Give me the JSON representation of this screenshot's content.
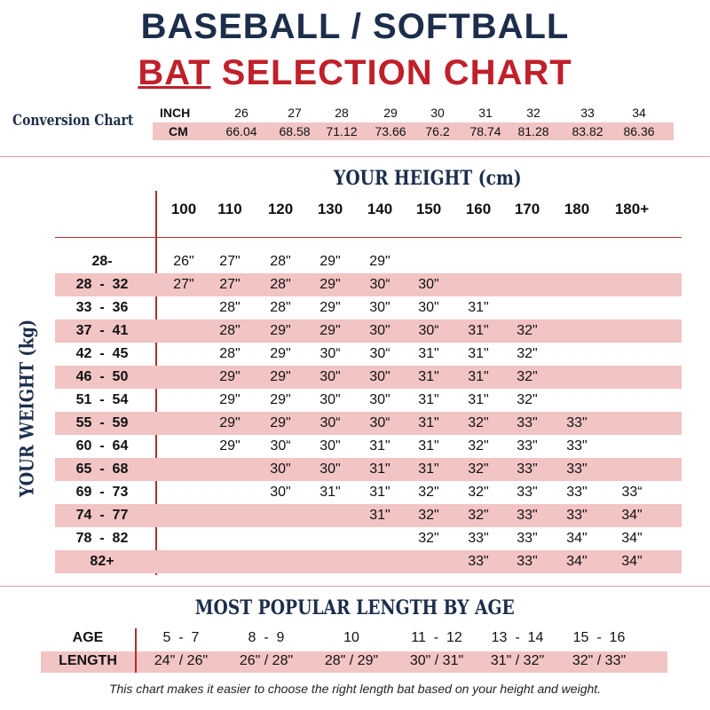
{
  "title": {
    "line1": "BASEBALL / SOFTBALL",
    "line2_highlight": "BAT",
    "line2_rest": " SELECTION CHART"
  },
  "conversion": {
    "title": "Conversion Chart",
    "inch_label": "INCH",
    "cm_label": "CM",
    "inch": [
      "26",
      "27",
      "28",
      "29",
      "30",
      "31",
      "32",
      "33",
      "34"
    ],
    "cm": [
      "66.04",
      "68.58",
      "71.12",
      "73.66",
      "76.2",
      "78.74",
      "81.28",
      "83.82",
      "86.36"
    ]
  },
  "main": {
    "height_label": "YOUR HEIGHT (cm)",
    "weight_label": "YOUR WEIGHT (kg)",
    "heights": [
      "100",
      "110",
      "120",
      "130",
      "140",
      "150",
      "160",
      "170",
      "180",
      "180+"
    ],
    "rows": [
      {
        "weight": "28-",
        "values": [
          "26\"",
          "27\"",
          "28\"",
          "29\"",
          "29\"",
          "",
          "",
          "",
          "",
          ""
        ]
      },
      {
        "weight": "28  -  32",
        "values": [
          "27\"",
          "27\"",
          "28\"",
          "29\"",
          "30“",
          "30\"",
          "",
          "",
          "",
          ""
        ]
      },
      {
        "weight": "33  -  36",
        "values": [
          "",
          "28\"",
          "28\"",
          "29\"",
          "30\"",
          "30\"",
          "31\"",
          "",
          "",
          ""
        ]
      },
      {
        "weight": "37  -  41",
        "values": [
          "",
          "28\"",
          "29\"",
          "29\"",
          "30\"",
          "30“",
          "31\"",
          "32\"",
          "",
          ""
        ]
      },
      {
        "weight": "42  -  45",
        "values": [
          "",
          "28\"",
          "29\"",
          "30“",
          "30“",
          "31\"",
          "31\"",
          "32\"",
          "",
          ""
        ]
      },
      {
        "weight": "46  -  50",
        "values": [
          "",
          "29\"",
          "29\"",
          "30\"",
          "30\"",
          "31\"",
          "31\"",
          "32\"",
          "",
          ""
        ]
      },
      {
        "weight": "51  -  54",
        "values": [
          "",
          "29\"",
          "29\"",
          "30\"",
          "30\"",
          "31\"",
          "31\"",
          "32\"",
          "",
          ""
        ]
      },
      {
        "weight": "55  -  59",
        "values": [
          "",
          "29\"",
          "29\"",
          "30“",
          "30“",
          "31\"",
          "32\"",
          "33\"",
          "33\"",
          ""
        ]
      },
      {
        "weight": "60  -  64",
        "values": [
          "",
          "29\"",
          "30“",
          "30\"",
          "31\"",
          "31\"",
          "32\"",
          "33\"",
          "33\"",
          ""
        ]
      },
      {
        "weight": "65  -  68",
        "values": [
          "",
          "",
          "30\"",
          "30\"",
          "31\"",
          "31\"",
          "32\"",
          "33\"",
          "33\"",
          ""
        ]
      },
      {
        "weight": "69  -  73",
        "values": [
          "",
          "",
          "30\"",
          "31\"",
          "31\"",
          "32\"",
          "32\"",
          "33\"",
          "33\"",
          "33“"
        ]
      },
      {
        "weight": "74  -  77",
        "values": [
          "",
          "",
          "",
          "",
          "31\"",
          "32\"",
          "32\"",
          "33\"",
          "33\"",
          "34\""
        ]
      },
      {
        "weight": "78  -  82",
        "values": [
          "",
          "",
          "",
          "",
          "",
          "32\"",
          "33\"",
          "33\"",
          "34\"",
          "34\""
        ]
      },
      {
        "weight": "82+",
        "values": [
          "",
          "",
          "",
          "",
          "",
          "",
          "33\"",
          "33\"",
          "34\"",
          "34\""
        ]
      }
    ]
  },
  "age_table": {
    "title": "MOST POPULAR LENGTH BY AGE",
    "age_label": "AGE",
    "length_label": "LENGTH",
    "ages": [
      "5  -  7",
      "8  -  9",
      "10",
      "11  -  12",
      "13  -  14",
      "15  -  16"
    ],
    "lengths": [
      "24\" / 26\"",
      "26\" / 28\"",
      "28\" / 29\"",
      "30\" / 31\"",
      "31\" / 32\"",
      "32\" / 33\""
    ]
  },
  "footer": "This chart makes it easier to choose the right length bat based on your height and weight.",
  "colors": {
    "navy": "#1c2e4a",
    "red": "#c0202a",
    "pink": "#f2c4c4"
  }
}
